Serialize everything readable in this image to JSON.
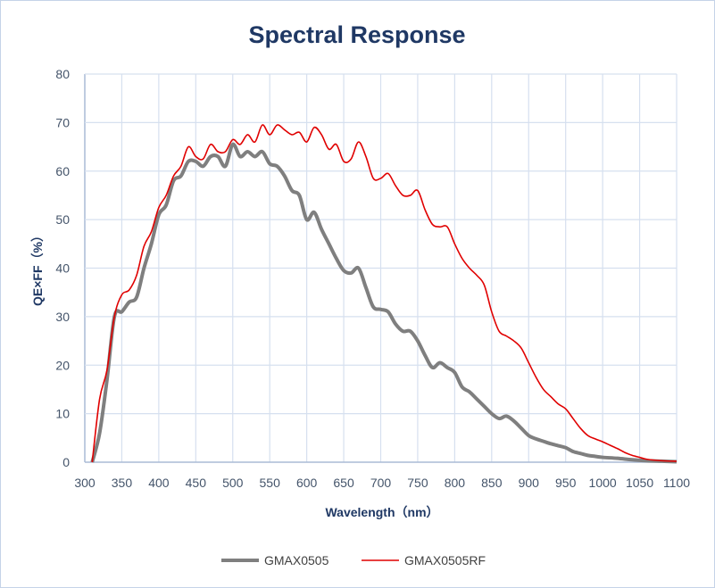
{
  "chart_data": {
    "type": "line",
    "title": "Spectral Response",
    "xlabel": "Wavelength（nm）",
    "ylabel": "QE×FF（%）",
    "xlim": [
      300,
      1100
    ],
    "ylim": [
      0,
      80
    ],
    "xticks": [
      300,
      350,
      400,
      450,
      500,
      550,
      600,
      650,
      700,
      750,
      800,
      850,
      900,
      950,
      1000,
      1050,
      1100
    ],
    "yticks": [
      0,
      10,
      20,
      30,
      40,
      50,
      60,
      70,
      80
    ],
    "grid": true,
    "legend_position": "bottom",
    "series": [
      {
        "name": "GMAX0505",
        "color": "#7f7f7f",
        "x": [
          310,
          320,
          330,
          340,
          350,
          360,
          370,
          380,
          390,
          400,
          410,
          420,
          430,
          440,
          450,
          460,
          470,
          480,
          490,
          500,
          510,
          520,
          530,
          540,
          550,
          560,
          570,
          580,
          590,
          600,
          610,
          620,
          630,
          640,
          650,
          660,
          670,
          680,
          690,
          700,
          710,
          720,
          730,
          740,
          750,
          760,
          770,
          780,
          790,
          800,
          810,
          820,
          830,
          840,
          850,
          860,
          870,
          880,
          890,
          900,
          910,
          920,
          930,
          940,
          950,
          960,
          970,
          980,
          990,
          1000,
          1020,
          1040,
          1060,
          1080,
          1100
        ],
        "y": [
          0,
          6,
          17,
          30,
          31,
          33,
          34,
          40,
          45,
          51,
          53,
          58,
          59,
          62,
          62,
          61,
          63,
          63,
          61,
          65.5,
          63,
          64,
          63,
          64,
          61.5,
          61,
          59,
          56,
          55,
          50,
          51.5,
          48,
          45,
          42,
          39.5,
          39,
          40,
          36,
          32,
          31.5,
          31,
          28.5,
          27,
          27,
          25,
          22,
          19.5,
          20.5,
          19.5,
          18.5,
          15.5,
          14.5,
          13,
          11.5,
          10,
          9,
          9.5,
          8.5,
          7,
          5.5,
          4.8,
          4.3,
          3.8,
          3.4,
          3,
          2.2,
          1.8,
          1.4,
          1.2,
          1,
          0.8,
          0.5,
          0.3,
          0.2,
          0.1
        ]
      },
      {
        "name": "GMAX0505RF",
        "color": "#e00000",
        "x": [
          310,
          320,
          330,
          340,
          350,
          360,
          370,
          380,
          390,
          400,
          410,
          420,
          430,
          440,
          450,
          460,
          470,
          480,
          490,
          500,
          510,
          520,
          530,
          540,
          550,
          560,
          570,
          580,
          590,
          600,
          610,
          620,
          630,
          640,
          650,
          660,
          670,
          680,
          690,
          700,
          710,
          720,
          730,
          740,
          750,
          760,
          770,
          780,
          790,
          800,
          810,
          820,
          830,
          840,
          850,
          860,
          870,
          880,
          890,
          900,
          910,
          920,
          930,
          940,
          950,
          960,
          970,
          980,
          990,
          1000,
          1010,
          1020,
          1030,
          1040,
          1050,
          1060,
          1080,
          1100
        ],
        "y": [
          0,
          13,
          19,
          30,
          34.5,
          35.5,
          38.5,
          44.5,
          47.5,
          52.5,
          55,
          59,
          61,
          65,
          63,
          62.5,
          65.5,
          64,
          64,
          66.5,
          65.5,
          67.5,
          66,
          69.5,
          67.5,
          69.5,
          68.5,
          67.5,
          68,
          66,
          69,
          67.5,
          64.5,
          65.5,
          62,
          62.5,
          66,
          63,
          58.5,
          58.5,
          59.5,
          57,
          55,
          55,
          56,
          52,
          49,
          48.5,
          48.5,
          45,
          42,
          40,
          38.5,
          36.5,
          31,
          27,
          26,
          25,
          23.5,
          20.5,
          17.5,
          15,
          13.5,
          12,
          11,
          9,
          7,
          5.5,
          4.8,
          4.2,
          3.5,
          2.8,
          2,
          1.4,
          1,
          0.6,
          0.3,
          0.2
        ]
      }
    ]
  }
}
